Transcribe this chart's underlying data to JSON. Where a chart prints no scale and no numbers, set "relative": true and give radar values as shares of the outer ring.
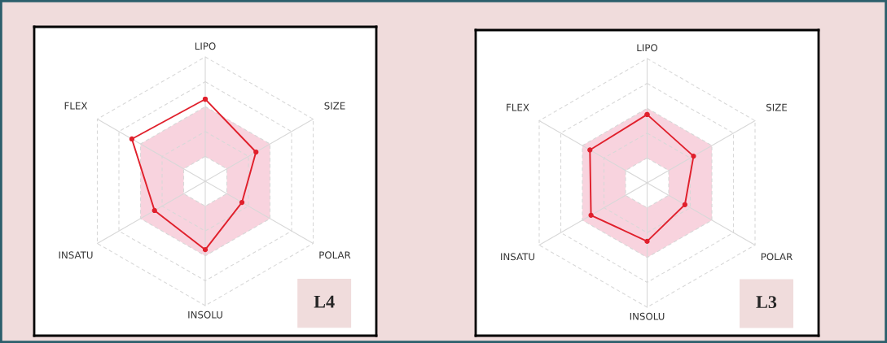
{
  "chart_data": [
    {
      "type": "radar",
      "categories": [
        "LIPO",
        "SIZE",
        "POLAR",
        "INSOLU",
        "INSATU",
        "FLEX"
      ],
      "relative": true,
      "grid": true,
      "marker": "circle",
      "line_style": "solid",
      "series": [
        {
          "color": "#e0202c",
          "values": [
            0.66,
            0.47,
            0.34,
            0.55,
            0.47,
            0.68
          ]
        }
      ],
      "annotations": [
        "L4"
      ]
    },
    {
      "type": "radar",
      "categories": [
        "LIPO",
        "SIZE",
        "POLAR",
        "INSOLU",
        "INSATU",
        "FLEX"
      ],
      "relative": true,
      "grid": true,
      "marker": "circle",
      "line_style": "solid",
      "series": [
        {
          "color": "#e0202c",
          "values": [
            0.55,
            0.43,
            0.35,
            0.47,
            0.52,
            0.53
          ]
        }
      ],
      "annotations": [
        "L3"
      ]
    }
  ]
}
